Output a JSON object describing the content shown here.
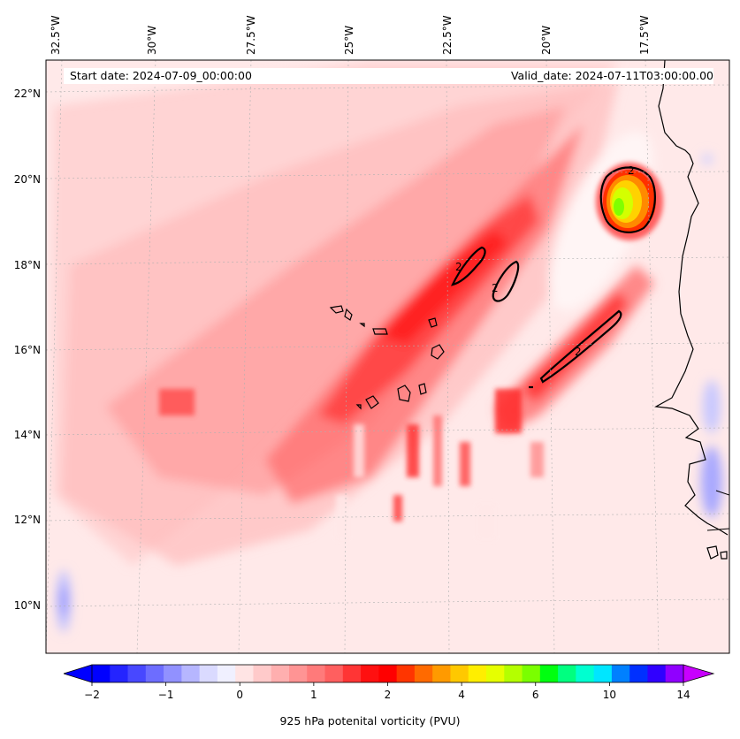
{
  "map": {
    "start_date_label": "Start date: 2024-07-09_00:00:00",
    "valid_date_label": "Valid_date: 2024-07-11T03:00:00.00",
    "lon_labels": [
      "32.5°W",
      "30°W",
      "27.5°W",
      "25°W",
      "22.5°W",
      "20°W",
      "17.5°W"
    ],
    "lat_labels": [
      "22°N",
      "20°N",
      "18°N",
      "16°N",
      "14°N",
      "12°N",
      "10°N"
    ],
    "contour_label": "2",
    "variable": "925 hPa potenital vorticity (PVU)",
    "region": "Eastern tropical North Atlantic, Cape Verde islands and West African coast"
  },
  "chart_data": {
    "type": "heatmap",
    "title": "",
    "colorbar_label": "925 hPa potenital vorticity (PVU)",
    "colorbar_ticks": [
      "−2",
      "−1",
      "0",
      "1",
      "2",
      "4",
      "6",
      "10",
      "14"
    ],
    "colorbar_tick_values": [
      -2,
      -1,
      0,
      1,
      2,
      4,
      6,
      10,
      14
    ],
    "colorbar_extend": "both",
    "colorbar_colors": [
      "#0000ff",
      "#2424ff",
      "#4848ff",
      "#6d6dff",
      "#9191ff",
      "#b6b6ff",
      "#dadaff",
      "#f0f0ff",
      "#ffe4e4",
      "#ffcaca",
      "#ffafaf",
      "#ff9494",
      "#ff7a7a",
      "#ff5f5f",
      "#ff3535",
      "#ff1010",
      "#ff0000",
      "#ff3500",
      "#ff6a00",
      "#ff9a00",
      "#ffc800",
      "#ffee00",
      "#e6ff00",
      "#b4ff00",
      "#7aff00",
      "#00ff10",
      "#00ff80",
      "#00ffd0",
      "#00e6ff",
      "#0080ff",
      "#0030ff",
      "#3000ff",
      "#9000ff"
    ],
    "colorbar_low_extend": "#0000ff",
    "colorbar_high_extend": "#c800ff",
    "contour_level": 2,
    "lon_range": [
      -33,
      -16
    ],
    "lat_range": [
      9,
      22.5
    ],
    "features": [
      {
        "name": "PV maximum near 18.5°W 19.5°N",
        "peak": 8
      },
      {
        "name": "SW-NE PV band through Cape Verde",
        "peak": 2
      }
    ]
  }
}
